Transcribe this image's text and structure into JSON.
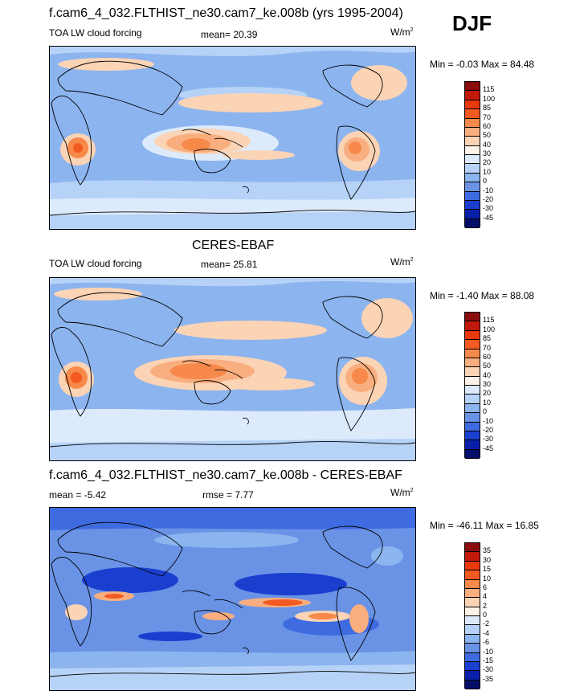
{
  "season": "DJF",
  "units_text": "W/m",
  "units_exp": "2",
  "panels": [
    {
      "title": "f.cam6_4_032.FLTHIST_ne30.cam7_ke.008b (yrs 1995-2004)",
      "left_label": "TOA LW cloud forcing",
      "center_label": "mean=  20.39",
      "minmax": "Min =  -0.03 Max =  84.48"
    },
    {
      "title": "CERES-EBAF",
      "left_label": "TOA LW cloud forcing",
      "center_label": "mean=  25.81",
      "minmax": "Min =  -1.40 Max =  88.08"
    },
    {
      "title": "f.cam6_4_032.FLTHIST_ne30.cam7_ke.008b - CERES-EBAF",
      "left_label": "mean =  -5.42",
      "center_label": "rmse =   7.77",
      "minmax": "Min = -46.11 Max =  16.85"
    }
  ],
  "colorbars": {
    "field": {
      "levels": [
        "115",
        "100",
        "85",
        "70",
        "60",
        "50",
        "40",
        "30",
        "20",
        "10",
        "0",
        "-10",
        "-20",
        "-30",
        "-45"
      ],
      "colors": [
        "#8a0d0d",
        "#c21a0a",
        "#e8380c",
        "#f25a22",
        "#f7894a",
        "#f9ae7f",
        "#fbd3b5",
        "#fdf2e8",
        "#dceafc",
        "#b6d2f7",
        "#8cb4ef",
        "#6a93e6",
        "#3e6be0",
        "#1a3fcf",
        "#0a1fa8",
        "#050f6a"
      ]
    },
    "diff": {
      "levels": [
        "35",
        "30",
        "15",
        "10",
        "6",
        "4",
        "2",
        "0",
        "-2",
        "-4",
        "-6",
        "-10",
        "-15",
        "-30",
        "-35"
      ],
      "colors": [
        "#8a0d0d",
        "#c21a0a",
        "#e8380c",
        "#f25a22",
        "#f7894a",
        "#f9ae7f",
        "#fbd3b5",
        "#fdf2e8",
        "#dceafc",
        "#b6d2f7",
        "#8cb4ef",
        "#6a93e6",
        "#3e6be0",
        "#1a3fcf",
        "#0a1fa8",
        "#050f6a"
      ]
    }
  },
  "chart_data": [
    {
      "type": "heatmap",
      "title": "f.cam6_4_032.FLTHIST_ne30.cam7_ke.008b (yrs 1995-2004)",
      "variable": "TOA LW cloud forcing",
      "units": "W/m2",
      "season": "DJF",
      "mean": 20.39,
      "min": -0.03,
      "max": 84.48,
      "contour_levels": [
        -45,
        -30,
        -20,
        -10,
        0,
        10,
        20,
        30,
        40,
        50,
        60,
        70,
        85,
        100,
        115
      ]
    },
    {
      "type": "heatmap",
      "title": "CERES-EBAF",
      "variable": "TOA LW cloud forcing",
      "units": "W/m2",
      "season": "DJF",
      "mean": 25.81,
      "min": -1.4,
      "max": 88.08,
      "contour_levels": [
        -45,
        -30,
        -20,
        -10,
        0,
        10,
        20,
        30,
        40,
        50,
        60,
        70,
        85,
        100,
        115
      ]
    },
    {
      "type": "heatmap",
      "title": "f.cam6_4_032.FLTHIST_ne30.cam7_ke.008b - CERES-EBAF",
      "variable": "TOA LW cloud forcing difference",
      "units": "W/m2",
      "season": "DJF",
      "mean": -5.42,
      "rmse": 7.77,
      "min": -46.11,
      "max": 16.85,
      "contour_levels": [
        -35,
        -30,
        -15,
        -10,
        -6,
        -4,
        -2,
        0,
        2,
        4,
        6,
        10,
        15,
        30,
        35
      ]
    }
  ]
}
